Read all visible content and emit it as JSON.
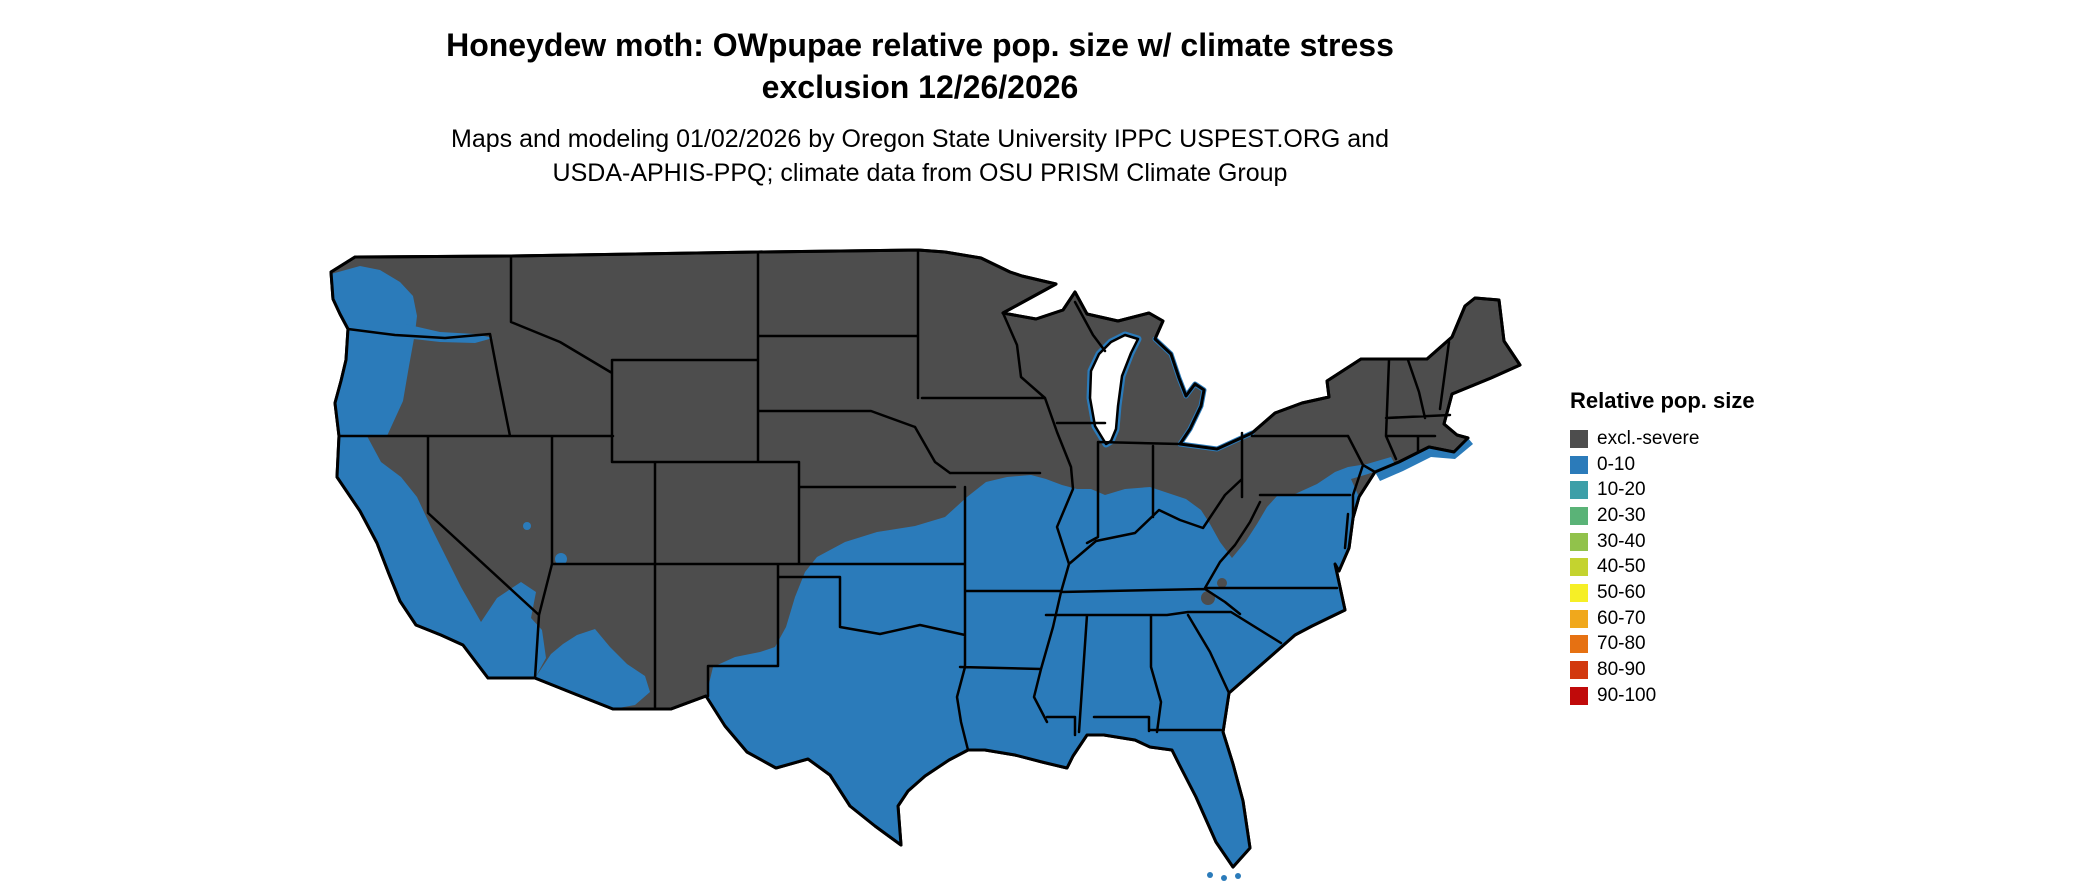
{
  "figure": {
    "title_line1": "Honeydew moth: OWpupae relative pop. size w/ climate stress",
    "title_line2": "exclusion 12/26/2026",
    "subtitle_line1": "Maps and modeling 01/02/2026 by Oregon State University IPPC USPEST.ORG and",
    "subtitle_line2": "USDA-APHIS-PPQ; climate data from OSU PRISM Climate Group"
  },
  "legend": {
    "title": "Relative pop. size",
    "entries": [
      {
        "label": "excl.-severe",
        "color": "#4d4d4d"
      },
      {
        "label": "0-10",
        "color": "#2b7bba"
      },
      {
        "label": "10-20",
        "color": "#3d9fa8"
      },
      {
        "label": "20-30",
        "color": "#5ab377"
      },
      {
        "label": "30-40",
        "color": "#91c24b"
      },
      {
        "label": "40-50",
        "color": "#c4d32f"
      },
      {
        "label": "50-60",
        "color": "#f6ef26"
      },
      {
        "label": "60-70",
        "color": "#f0a81c"
      },
      {
        "label": "70-80",
        "color": "#e67112"
      },
      {
        "label": "80-90",
        "color": "#d2380e"
      },
      {
        "label": "90-100",
        "color": "#c00a0a"
      }
    ]
  },
  "map": {
    "colors": {
      "excluded": "#4d4d4d",
      "low": "#2b7bba",
      "water": "#ffffff",
      "background": "#ffffff"
    }
  }
}
